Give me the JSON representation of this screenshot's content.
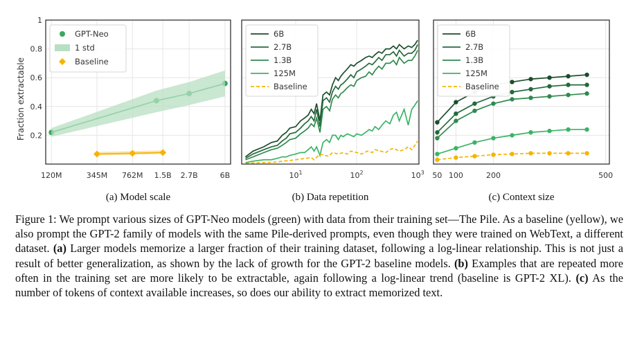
{
  "chart_data": [
    {
      "type": "line",
      "subtitle": "(a) Model scale",
      "ylabel": "Fraction extractable",
      "ylim": [
        0,
        1
      ],
      "yticks": [
        0.2,
        0.4,
        0.6,
        0.8,
        1
      ],
      "ytick_labels": [
        "0.2",
        "0.4",
        "0.6",
        "0.8",
        "1"
      ],
      "xscale": "log",
      "xlim": [
        110,
        6800
      ],
      "categories": [
        "120M",
        "345M",
        "762M",
        "1.5B",
        "2.7B",
        "6B"
      ],
      "x_positions": [
        125,
        345,
        762,
        1500,
        2700,
        6000
      ],
      "legend": [
        "GPT-Neo",
        "1 std",
        "Baseline"
      ],
      "legend_position": "upper-left",
      "grid": true,
      "series": [
        {
          "name": "GPT-Neo",
          "color": "#3aa860",
          "marker": "circle",
          "x": [
            125,
            1300,
            2700,
            6000
          ],
          "values": [
            0.22,
            0.44,
            0.49,
            0.56
          ]
        },
        {
          "name": "1 std",
          "color": "#b7dfc2",
          "kind": "band",
          "x": [
            125,
            1300,
            2700,
            6000
          ],
          "lower": [
            0.19,
            0.36,
            0.41,
            0.47
          ],
          "upper": [
            0.25,
            0.51,
            0.57,
            0.65
          ]
        },
        {
          "name": "Baseline",
          "color": "#f5b400",
          "marker": "diamond",
          "x": [
            345,
            762,
            1500
          ],
          "values": [
            0.07,
            0.075,
            0.08
          ],
          "lower": [
            0.06,
            0.065,
            0.07
          ],
          "upper": [
            0.085,
            0.09,
            0.095
          ]
        }
      ]
    },
    {
      "type": "line",
      "subtitle": "(b) Data repetition",
      "xscale": "log",
      "xlim": [
        1.3,
        1050
      ],
      "xticks": [
        10,
        100,
        1000
      ],
      "xtick_labels": [
        "10",
        "10",
        "10"
      ],
      "xtick_exponents": [
        "1",
        "2",
        "3"
      ],
      "ylim": [
        0,
        1
      ],
      "legend": [
        "6B",
        "2.7B",
        "1.3B",
        "125M",
        "Baseline"
      ],
      "legend_position": "upper-left",
      "grid": true,
      "series": [
        {
          "name": "6B",
          "color": "#1b4d2c",
          "x": [
            1.5,
            2,
            3,
            4,
            5,
            6,
            7,
            8,
            10,
            12,
            14,
            16,
            18,
            20,
            22,
            25,
            28,
            32,
            36,
            40,
            45,
            50,
            55,
            60,
            70,
            80,
            90,
            100,
            120,
            140,
            160,
            180,
            200,
            230,
            260,
            300,
            350,
            400,
            450,
            500,
            600,
            700,
            800,
            900,
            1000
          ],
          "values": [
            0.05,
            0.09,
            0.12,
            0.15,
            0.16,
            0.2,
            0.22,
            0.25,
            0.26,
            0.3,
            0.32,
            0.34,
            0.38,
            0.35,
            0.42,
            0.3,
            0.48,
            0.5,
            0.48,
            0.55,
            0.6,
            0.58,
            0.61,
            0.63,
            0.66,
            0.69,
            0.68,
            0.7,
            0.72,
            0.74,
            0.75,
            0.74,
            0.76,
            0.78,
            0.77,
            0.8,
            0.8,
            0.82,
            0.8,
            0.83,
            0.8,
            0.82,
            0.81,
            0.83,
            0.86
          ]
        },
        {
          "name": "2.7B",
          "color": "#25693c",
          "x": [
            1.5,
            2,
            3,
            4,
            5,
            6,
            7,
            8,
            10,
            12,
            14,
            16,
            18,
            20,
            22,
            25,
            28,
            32,
            36,
            40,
            45,
            50,
            55,
            60,
            70,
            80,
            90,
            100,
            120,
            140,
            160,
            180,
            200,
            230,
            260,
            300,
            350,
            400,
            450,
            500,
            600,
            700,
            800,
            900,
            1000
          ],
          "values": [
            0.04,
            0.07,
            0.1,
            0.12,
            0.13,
            0.16,
            0.18,
            0.21,
            0.22,
            0.25,
            0.28,
            0.3,
            0.33,
            0.3,
            0.38,
            0.26,
            0.44,
            0.46,
            0.43,
            0.5,
            0.54,
            0.52,
            0.55,
            0.56,
            0.59,
            0.62,
            0.6,
            0.64,
            0.66,
            0.68,
            0.7,
            0.69,
            0.71,
            0.74,
            0.72,
            0.76,
            0.76,
            0.78,
            0.75,
            0.79,
            0.75,
            0.77,
            0.77,
            0.79,
            0.83
          ]
        },
        {
          "name": "1.3B",
          "color": "#2f8a4e",
          "x": [
            1.5,
            2,
            3,
            4,
            5,
            6,
            7,
            8,
            10,
            12,
            14,
            16,
            18,
            20,
            22,
            25,
            28,
            32,
            36,
            40,
            45,
            50,
            55,
            60,
            70,
            80,
            90,
            100,
            120,
            140,
            160,
            180,
            200,
            230,
            260,
            300,
            350,
            400,
            450,
            500,
            600,
            700,
            800,
            900,
            1000
          ],
          "values": [
            0.03,
            0.05,
            0.08,
            0.1,
            0.11,
            0.13,
            0.15,
            0.17,
            0.18,
            0.21,
            0.23,
            0.25,
            0.28,
            0.26,
            0.32,
            0.22,
            0.38,
            0.4,
            0.37,
            0.45,
            0.48,
            0.46,
            0.49,
            0.5,
            0.53,
            0.55,
            0.54,
            0.58,
            0.6,
            0.61,
            0.64,
            0.62,
            0.65,
            0.68,
            0.66,
            0.7,
            0.7,
            0.72,
            0.69,
            0.74,
            0.7,
            0.72,
            0.72,
            0.75,
            0.79
          ]
        },
        {
          "name": "125M",
          "color": "#3bb366",
          "x": [
            1.5,
            2,
            3,
            4,
            5,
            6,
            7,
            8,
            10,
            12,
            14,
            16,
            18,
            20,
            22,
            25,
            28,
            32,
            36,
            40,
            45,
            50,
            55,
            60,
            70,
            80,
            90,
            100,
            120,
            140,
            160,
            180,
            200,
            230,
            260,
            300,
            350,
            400,
            450,
            500,
            600,
            700,
            800,
            900,
            1000
          ],
          "values": [
            0.01,
            0.02,
            0.03,
            0.03,
            0.04,
            0.05,
            0.05,
            0.06,
            0.07,
            0.08,
            0.08,
            0.1,
            0.12,
            0.09,
            0.12,
            0.06,
            0.15,
            0.17,
            0.15,
            0.2,
            0.2,
            0.17,
            0.2,
            0.19,
            0.21,
            0.2,
            0.19,
            0.21,
            0.2,
            0.22,
            0.24,
            0.23,
            0.26,
            0.24,
            0.27,
            0.3,
            0.28,
            0.34,
            0.36,
            0.3,
            0.38,
            0.27,
            0.38,
            0.41,
            0.44
          ]
        },
        {
          "name": "Baseline",
          "color": "#f5b400",
          "dashed": true,
          "x": [
            1.5,
            2,
            3,
            4,
            5,
            6,
            8,
            10,
            12,
            15,
            18,
            20,
            25,
            30,
            35,
            40,
            50,
            60,
            70,
            80,
            100,
            120,
            150,
            180,
            200,
            250,
            300,
            350,
            400,
            500,
            600,
            700,
            800,
            900,
            1000
          ],
          "values": [
            0.005,
            0.008,
            0.01,
            0.012,
            0.015,
            0.02,
            0.025,
            0.03,
            0.035,
            0.04,
            0.045,
            0.03,
            0.07,
            0.06,
            0.055,
            0.08,
            0.07,
            0.08,
            0.07,
            0.09,
            0.08,
            0.07,
            0.09,
            0.08,
            0.1,
            0.09,
            0.08,
            0.1,
            0.11,
            0.09,
            0.1,
            0.12,
            0.1,
            0.13,
            0.16
          ]
        }
      ]
    },
    {
      "type": "line",
      "subtitle": "(c) Context size",
      "xlim": [
        40,
        510
      ],
      "xticks": [
        50,
        100,
        200,
        500
      ],
      "xtick_labels": [
        "50",
        "100",
        "200",
        "500"
      ],
      "ylim": [
        0,
        1
      ],
      "legend": [
        "6B",
        "2.7B",
        "1.3B",
        "125M",
        "Baseline"
      ],
      "legend_position": "upper-left",
      "grid": true,
      "series": [
        {
          "name": "6B",
          "color": "#1b4d2c",
          "marker": "circle",
          "x": [
            50,
            100,
            150,
            200,
            250,
            300,
            350,
            400,
            450
          ],
          "values": [
            0.29,
            0.43,
            0.5,
            0.55,
            0.57,
            0.59,
            0.6,
            0.61,
            0.62
          ]
        },
        {
          "name": "2.7B",
          "color": "#25693c",
          "marker": "circle",
          "x": [
            50,
            100,
            150,
            200,
            250,
            300,
            350,
            400,
            450
          ],
          "values": [
            0.22,
            0.35,
            0.42,
            0.47,
            0.5,
            0.52,
            0.54,
            0.55,
            0.55
          ]
        },
        {
          "name": "1.3B",
          "color": "#2f8a4e",
          "marker": "circle",
          "x": [
            50,
            100,
            150,
            200,
            250,
            300,
            350,
            400,
            450
          ],
          "values": [
            0.18,
            0.3,
            0.37,
            0.42,
            0.45,
            0.46,
            0.47,
            0.48,
            0.49
          ]
        },
        {
          "name": "125M",
          "color": "#3bb366",
          "marker": "circle",
          "x": [
            50,
            100,
            150,
            200,
            250,
            300,
            350,
            400,
            450
          ],
          "values": [
            0.07,
            0.11,
            0.15,
            0.18,
            0.2,
            0.22,
            0.23,
            0.24,
            0.24
          ]
        },
        {
          "name": "Baseline",
          "color": "#f5b400",
          "marker": "circle",
          "dashed": true,
          "x": [
            50,
            100,
            150,
            200,
            250,
            300,
            350,
            400,
            450
          ],
          "values": [
            0.03,
            0.045,
            0.055,
            0.065,
            0.07,
            0.075,
            0.075,
            0.075,
            0.075
          ]
        }
      ]
    }
  ],
  "caption": {
    "segments": [
      {
        "text": "Figure 1: We prompt various sizes of GPT-Neo models (green) with data from their training set—The Pile. As a baseline (yellow), we also prompt the GPT-2 family of models with the same Pile-derived prompts, even though they were trained on WebText, a different dataset. ",
        "bold": false
      },
      {
        "text": "(a)",
        "bold": true
      },
      {
        "text": " Larger models memorize a larger fraction of their training dataset, following a log-linear relationship. This is not just a result of better generalization, as shown by the lack of growth for the GPT-2 baseline models. ",
        "bold": false
      },
      {
        "text": "(b)",
        "bold": true
      },
      {
        "text": " Examples that are repeated more often in the training set are more likely to be extractable, again following a log-linear trend (baseline is GPT-2 XL). ",
        "bold": false
      },
      {
        "text": "(c)",
        "bold": true
      },
      {
        "text": " As the number of tokens of context available increases, so does our ability to extract memorized text.",
        "bold": false
      }
    ]
  }
}
